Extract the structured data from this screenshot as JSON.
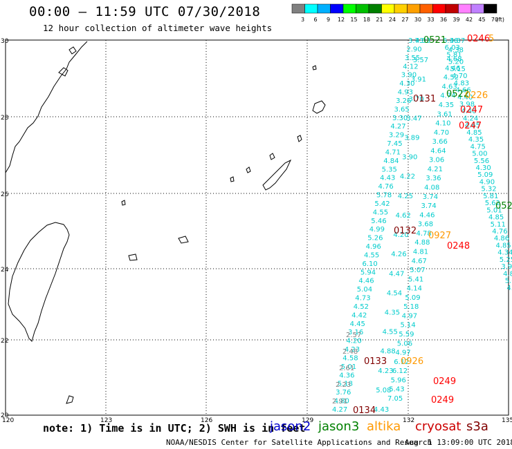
{
  "header": {
    "title": "00:00 – 11:59 UTC 07/30/2018",
    "subtitle": "12 hour collection of altimeter wave heights"
  },
  "legend": {
    "unit": "(ft)",
    "ticks": [
      "3",
      "6",
      "9",
      "12",
      "15",
      "18",
      "21",
      "24",
      "27",
      "30",
      "33",
      "36",
      "39",
      "42",
      "45",
      "70"
    ],
    "colors": [
      "#808080",
      "#00ffff",
      "#00b0ff",
      "#0000ff",
      "#00ff00",
      "#00c000",
      "#008000",
      "#ffff00",
      "#ffd000",
      "#ffa000",
      "#ff6000",
      "#ff0000",
      "#c00000",
      "#ff80ff",
      "#c080ff",
      "#000000"
    ]
  },
  "axes": {
    "lon_labels": [
      "120",
      "123",
      "126",
      "129",
      "132",
      "135"
    ],
    "lat_labels": [
      "30",
      "28",
      "26",
      "24",
      "22",
      "20"
    ]
  },
  "footer": {
    "note": "note: 1) Time is in UTC; 2) SWH is in feet",
    "satellites": [
      {
        "name": "jason2",
        "color": "#0000cc"
      },
      {
        "name": "jason3",
        "color": "#008000"
      },
      {
        "name": "altika",
        "color": "#ff9900"
      },
      {
        "name": "cryosat",
        "color": "#cc0000"
      },
      {
        "name": "s3a",
        "color": "#800000"
      }
    ],
    "credit": "NOAA/NESDIS Center for Satellite Applications and Research",
    "timestamp": "Aug  1 13:09:00 UTC 2018"
  },
  "tracks": {
    "track_labels": [
      {
        "text": "0521",
        "color": "#008000"
      },
      {
        "text": "0246",
        "color": "#ff0000"
      },
      {
        "text": "5",
        "color": "#ff9900"
      },
      {
        "text": "0131",
        "color": "#800000"
      },
      {
        "text": "0522",
        "color": "#008000"
      },
      {
        "text": "0226",
        "color": "#ff9900"
      },
      {
        "text": "0247",
        "color": "#ff0000"
      },
      {
        "text": "0247",
        "color": "#ff0000"
      },
      {
        "text": "052",
        "color": "#008000"
      },
      {
        "text": "0132",
        "color": "#800000"
      },
      {
        "text": "0927",
        "color": "#ff9900"
      },
      {
        "text": "0248",
        "color": "#ff0000"
      },
      {
        "text": "0133",
        "color": "#800000"
      },
      {
        "text": "0926",
        "color": "#ff9900"
      },
      {
        "text": "0249",
        "color": "#ff0000"
      },
      {
        "text": "0249",
        "color": "#ff0000"
      },
      {
        "text": "0134",
        "color": "#800000"
      }
    ],
    "swh_cyan": [
      "3.73",
      "2.90",
      "3.55",
      "4.12",
      "3.90",
      "4.30",
      "4.93",
      "3.26",
      "3.65",
      "3.30",
      "4.27",
      "3.29",
      "7.45",
      "4.71",
      "4.84",
      "5.35",
      "4.43",
      "4.76",
      "5.78",
      "5.42",
      "4.55",
      "5.46",
      "4.99",
      "5.26",
      "4.96",
      "4.55",
      "6.10",
      "5.94",
      "4.46",
      "5.04",
      "4.73",
      "4.52",
      "4.42",
      "4.45",
      "3.16",
      "4.20",
      "4.23",
      "4.58",
      "5.01",
      "4.36",
      "5.18",
      "3.76",
      "4.80",
      "4.27",
      "4.33",
      "3.57",
      "3.91",
      "3.70",
      "3.47",
      "3.89",
      "3.90",
      "4.22",
      "4.25",
      "4.62",
      "4.20",
      "4.26",
      "4.47",
      "4.54",
      "4.35",
      "4.55",
      "4.88",
      "4.23",
      "5.08",
      "4.43",
      "4.87",
      "4.38",
      "4.68",
      "4.46",
      "4.52",
      "4.63",
      "4.74",
      "4.35",
      "3.61",
      "4.10",
      "4.70",
      "3.66",
      "4.64",
      "3.06",
      "4.21",
      "3.36",
      "4.08",
      "3.74",
      "3.74",
      "4.46",
      "3.68",
      "4.78",
      "4.88",
      "4.81",
      "4.67",
      "5.07",
      "5.41",
      "4.14",
      "5.09",
      "5.18",
      "4.97",
      "5.14",
      "5.59",
      "5.06",
      "4.97",
      "6.12",
      "6.12",
      "5.96",
      "5.43",
      "7.05",
      "6.36",
      "6.03",
      "5.81",
      "5.20",
      "5.15",
      "4.70",
      "4.83",
      "4.66",
      "4.40",
      "3.98",
      "4.40",
      "4.24",
      "4.65",
      "4.85",
      "4.35",
      "4.75",
      "5.00",
      "5.56",
      "4.30",
      "5.09",
      "4.90",
      "5.32",
      "5.81",
      "5.62",
      "5.01",
      "4.85",
      "5.11",
      "4.76",
      "4.86",
      "4.85",
      "4.34",
      "5.25",
      "3.90",
      "4.89",
      "5.0",
      "4.8"
    ],
    "swh_gray": [
      "2.57",
      "2.48",
      "2.61",
      "2.23",
      "2.91"
    ]
  }
}
